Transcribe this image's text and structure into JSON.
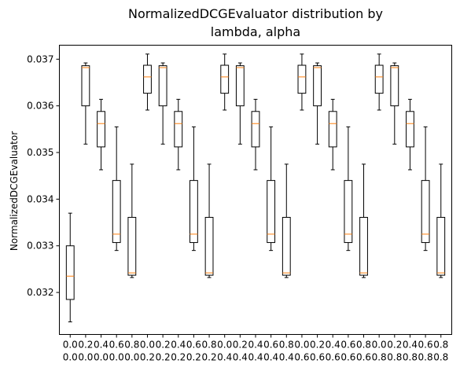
{
  "chart_data": {
    "type": "box",
    "title_lines": [
      "NormalizedDCGEvaluator distribution by",
      "lambda, alpha"
    ],
    "xlabel": "",
    "ylabel": "NormalizedDCGEvaluator",
    "ylim": [
      0.0311,
      0.0373
    ],
    "yticks": [
      0.032,
      0.033,
      0.034,
      0.035,
      0.036,
      0.037
    ],
    "ytick_labels": [
      "0.032",
      "0.033",
      "0.034",
      "0.035",
      "0.036",
      "0.037"
    ],
    "xtick_labels": [
      [
        "0.0",
        "0.0"
      ],
      [
        "0.2",
        "0.0"
      ],
      [
        "0.4",
        "0.0"
      ],
      [
        "0.6",
        "0.0"
      ],
      [
        "0.8",
        "0.0"
      ],
      [
        "0.0",
        "0.2"
      ],
      [
        "0.2",
        "0.2"
      ],
      [
        "0.4",
        "0.2"
      ],
      [
        "0.6",
        "0.2"
      ],
      [
        "0.8",
        "0.2"
      ],
      [
        "0.0",
        "0.4"
      ],
      [
        "0.2",
        "0.4"
      ],
      [
        "0.4",
        "0.4"
      ],
      [
        "0.6",
        "0.4"
      ],
      [
        "0.8",
        "0.4"
      ],
      [
        "0.0",
        "0.6"
      ],
      [
        "0.2",
        "0.6"
      ],
      [
        "0.4",
        "0.6"
      ],
      [
        "0.6",
        "0.6"
      ],
      [
        "0.8",
        "0.6"
      ],
      [
        "0.0",
        "0.8"
      ],
      [
        "0.2",
        "0.8"
      ],
      [
        "0.4",
        "0.8"
      ],
      [
        "0.6",
        "0.8"
      ],
      [
        "0.8",
        "0.8"
      ]
    ],
    "boxes": [
      {
        "whislo": 0.03137,
        "q1": 0.03185,
        "med": 0.03235,
        "q3": 0.033,
        "whishi": 0.0337
      },
      {
        "whislo": 0.03518,
        "q1": 0.036,
        "med": 0.03682,
        "q3": 0.03686,
        "whishi": 0.03692
      },
      {
        "whislo": 0.03463,
        "q1": 0.03512,
        "med": 0.03562,
        "q3": 0.03588,
        "whishi": 0.03614
      },
      {
        "whislo": 0.0329,
        "q1": 0.03307,
        "med": 0.03325,
        "q3": 0.0344,
        "whishi": 0.03555
      },
      {
        "whislo": 0.03232,
        "q1": 0.03237,
        "med": 0.03242,
        "q3": 0.03361,
        "whishi": 0.03475
      },
      {
        "whislo": 0.03591,
        "q1": 0.03627,
        "med": 0.03662,
        "q3": 0.03687,
        "whishi": 0.03711
      },
      {
        "whislo": 0.03518,
        "q1": 0.036,
        "med": 0.03682,
        "q3": 0.03686,
        "whishi": 0.03692
      },
      {
        "whislo": 0.03463,
        "q1": 0.03512,
        "med": 0.03562,
        "q3": 0.03588,
        "whishi": 0.03614
      },
      {
        "whislo": 0.0329,
        "q1": 0.03307,
        "med": 0.03325,
        "q3": 0.0344,
        "whishi": 0.03555
      },
      {
        "whislo": 0.03232,
        "q1": 0.03237,
        "med": 0.03242,
        "q3": 0.03361,
        "whishi": 0.03475
      },
      {
        "whislo": 0.03591,
        "q1": 0.03627,
        "med": 0.03662,
        "q3": 0.03687,
        "whishi": 0.03711
      },
      {
        "whislo": 0.03518,
        "q1": 0.036,
        "med": 0.03682,
        "q3": 0.03686,
        "whishi": 0.03692
      },
      {
        "whislo": 0.03463,
        "q1": 0.03512,
        "med": 0.03562,
        "q3": 0.03588,
        "whishi": 0.03614
      },
      {
        "whislo": 0.0329,
        "q1": 0.03307,
        "med": 0.03325,
        "q3": 0.0344,
        "whishi": 0.03555
      },
      {
        "whislo": 0.03232,
        "q1": 0.03237,
        "med": 0.03242,
        "q3": 0.03361,
        "whishi": 0.03475
      },
      {
        "whislo": 0.03591,
        "q1": 0.03627,
        "med": 0.03662,
        "q3": 0.03687,
        "whishi": 0.03711
      },
      {
        "whislo": 0.03518,
        "q1": 0.036,
        "med": 0.03682,
        "q3": 0.03686,
        "whishi": 0.03692
      },
      {
        "whislo": 0.03463,
        "q1": 0.03512,
        "med": 0.03562,
        "q3": 0.03588,
        "whishi": 0.03614
      },
      {
        "whislo": 0.0329,
        "q1": 0.03307,
        "med": 0.03325,
        "q3": 0.0344,
        "whishi": 0.03555
      },
      {
        "whislo": 0.03232,
        "q1": 0.03237,
        "med": 0.03242,
        "q3": 0.03361,
        "whishi": 0.03475
      },
      {
        "whislo": 0.03591,
        "q1": 0.03627,
        "med": 0.03662,
        "q3": 0.03687,
        "whishi": 0.03711
      },
      {
        "whislo": 0.03518,
        "q1": 0.036,
        "med": 0.03682,
        "q3": 0.03686,
        "whishi": 0.03692
      },
      {
        "whislo": 0.03463,
        "q1": 0.03512,
        "med": 0.03562,
        "q3": 0.03588,
        "whishi": 0.03614
      },
      {
        "whislo": 0.0329,
        "q1": 0.03307,
        "med": 0.03325,
        "q3": 0.0344,
        "whishi": 0.03555
      },
      {
        "whislo": 0.03232,
        "q1": 0.03237,
        "med": 0.03242,
        "q3": 0.03361,
        "whishi": 0.03475
      }
    ],
    "grid": false,
    "colors": {
      "box": "#000000",
      "median": "#ff7f0e",
      "background": "#ffffff"
    }
  }
}
